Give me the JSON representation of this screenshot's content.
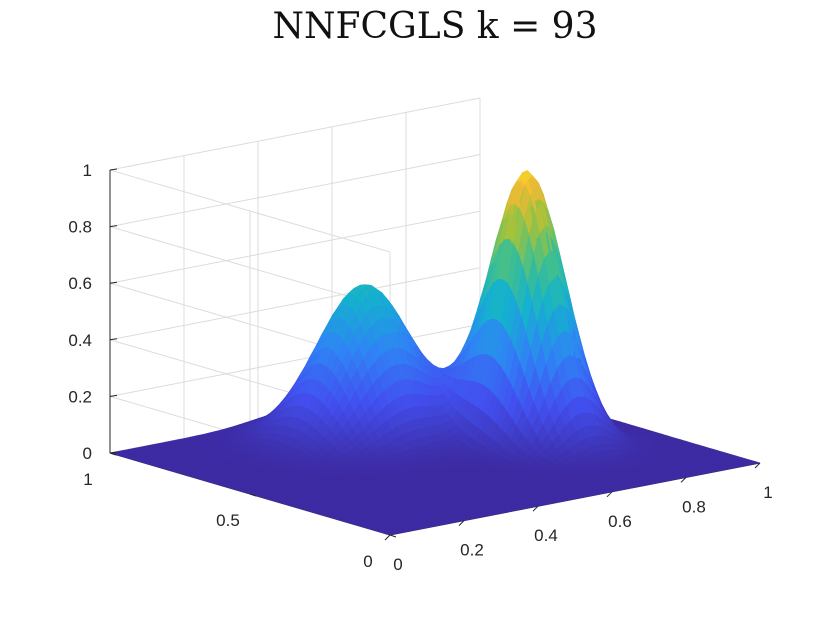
{
  "chart_data": {
    "type": "surface",
    "title": "NNFCGLS k = 93",
    "xlabel": "",
    "ylabel": "",
    "zlabel": "",
    "xlim": [
      0,
      1
    ],
    "ylim": [
      0,
      1
    ],
    "zlim": [
      0,
      1
    ],
    "x_ticks": [
      "0",
      "0.2",
      "0.4",
      "0.6",
      "0.8",
      "1"
    ],
    "y_ticks": [
      "0",
      "0.5",
      "1"
    ],
    "z_ticks": [
      "0",
      "0.2",
      "0.4",
      "0.6",
      "0.8",
      "1"
    ],
    "grid": true,
    "colormap": "parula",
    "view": "3d perspective",
    "peaks": [
      {
        "x": 0.5,
        "y": 0.75,
        "height": 0.54
      },
      {
        "x": 0.75,
        "y": 0.5,
        "height": 0.95
      }
    ],
    "saddle_height": 0.18,
    "baseline": 0
  }
}
